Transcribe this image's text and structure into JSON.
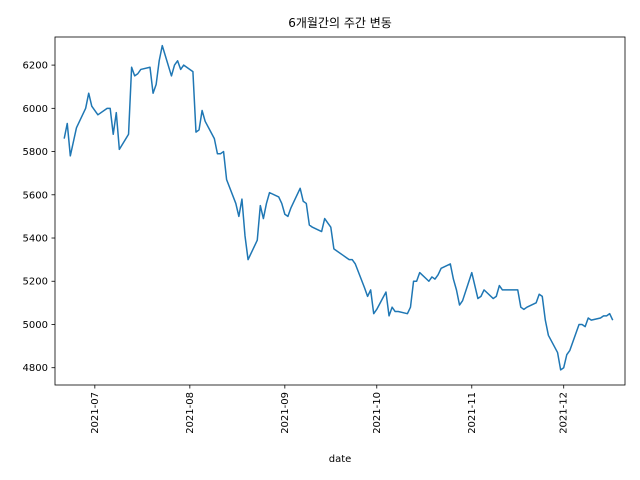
{
  "chart_data": {
    "type": "line",
    "title": "6개월간의 주간 변동",
    "xlabel": "date",
    "ylabel": "",
    "grid": false,
    "legend": "none",
    "line_color": "#1f77b4",
    "xlim": [
      "2021-06-18",
      "2021-12-21"
    ],
    "ylim": [
      4720,
      6330
    ],
    "x_ticks": [
      "2021-07",
      "2021-08",
      "2021-09",
      "2021-10",
      "2021-11",
      "2021-12"
    ],
    "x_tick_dates": [
      "2021-07-01",
      "2021-08-01",
      "2021-09-01",
      "2021-10-01",
      "2021-11-01",
      "2021-12-01"
    ],
    "y_ticks": [
      4800,
      5000,
      5200,
      5400,
      5600,
      5800,
      6000,
      6200
    ],
    "series": [
      {
        "x": [
          "2021-06-21",
          "2021-06-22",
          "2021-06-23",
          "2021-06-25",
          "2021-06-28",
          "2021-06-29",
          "2021-06-30",
          "2021-07-02",
          "2021-07-05",
          "2021-07-06",
          "2021-07-07",
          "2021-07-08",
          "2021-07-09",
          "2021-07-12",
          "2021-07-13",
          "2021-07-14",
          "2021-07-15",
          "2021-07-16",
          "2021-07-19",
          "2021-07-20",
          "2021-07-21",
          "2021-07-22",
          "2021-07-23",
          "2021-07-26",
          "2021-07-27",
          "2021-07-28",
          "2021-07-29",
          "2021-07-30",
          "2021-08-02",
          "2021-08-03",
          "2021-08-04",
          "2021-08-05",
          "2021-08-06",
          "2021-08-09",
          "2021-08-10",
          "2021-08-11",
          "2021-08-12",
          "2021-08-13",
          "2021-08-16",
          "2021-08-17",
          "2021-08-18",
          "2021-08-19",
          "2021-08-20",
          "2021-08-23",
          "2021-08-24",
          "2021-08-25",
          "2021-08-26",
          "2021-08-27",
          "2021-08-30",
          "2021-08-31",
          "2021-09-01",
          "2021-09-02",
          "2021-09-03",
          "2021-09-06",
          "2021-09-07",
          "2021-09-08",
          "2021-09-09",
          "2021-09-10",
          "2021-09-13",
          "2021-09-14",
          "2021-09-15",
          "2021-09-16",
          "2021-09-17",
          "2021-09-20",
          "2021-09-21",
          "2021-09-22",
          "2021-09-23",
          "2021-09-24",
          "2021-09-27",
          "2021-09-28",
          "2021-09-29",
          "2021-09-30",
          "2021-10-01",
          "2021-10-04",
          "2021-10-05",
          "2021-10-06",
          "2021-10-07",
          "2021-10-08",
          "2021-10-11",
          "2021-10-12",
          "2021-10-13",
          "2021-10-14",
          "2021-10-15",
          "2021-10-18",
          "2021-10-19",
          "2021-10-20",
          "2021-10-21",
          "2021-10-22",
          "2021-10-25",
          "2021-10-26",
          "2021-10-27",
          "2021-10-28",
          "2021-10-29",
          "2021-11-01",
          "2021-11-02",
          "2021-11-03",
          "2021-11-04",
          "2021-11-05",
          "2021-11-08",
          "2021-11-09",
          "2021-11-10",
          "2021-11-11",
          "2021-11-12",
          "2021-11-15",
          "2021-11-16",
          "2021-11-17",
          "2021-11-18",
          "2021-11-19",
          "2021-11-22",
          "2021-11-23",
          "2021-11-24",
          "2021-11-25",
          "2021-11-26",
          "2021-11-29",
          "2021-11-30",
          "2021-12-01",
          "2021-12-02",
          "2021-12-03",
          "2021-12-06",
          "2021-12-07",
          "2021-12-08",
          "2021-12-09",
          "2021-12-10",
          "2021-12-13",
          "2021-12-14",
          "2021-12-15",
          "2021-12-16",
          "2021-12-17"
        ],
        "y": [
          5860,
          5930,
          5780,
          5910,
          6000,
          6070,
          6010,
          5970,
          6000,
          6000,
          5880,
          5980,
          5810,
          5880,
          6190,
          6150,
          6160,
          6180,
          6190,
          6070,
          6110,
          6220,
          6290,
          6150,
          6200,
          6220,
          6180,
          6200,
          6170,
          5890,
          5900,
          5990,
          5940,
          5860,
          5790,
          5790,
          5800,
          5670,
          5560,
          5500,
          5580,
          5410,
          5300,
          5390,
          5550,
          5490,
          5560,
          5610,
          5590,
          5560,
          5510,
          5500,
          5540,
          5630,
          5570,
          5560,
          5460,
          5450,
          5430,
          5490,
          5470,
          5450,
          5350,
          5320,
          5310,
          5300,
          5300,
          5280,
          5170,
          5130,
          5160,
          5050,
          5070,
          5150,
          5040,
          5080,
          5060,
          5060,
          5050,
          5080,
          5200,
          5200,
          5240,
          5200,
          5220,
          5210,
          5230,
          5260,
          5280,
          5210,
          5160,
          5090,
          5110,
          5240,
          5180,
          5120,
          5130,
          5160,
          5120,
          5130,
          5180,
          5160,
          5160,
          5160,
          5160,
          5080,
          5070,
          5080,
          5100,
          5140,
          5130,
          5020,
          4950,
          4870,
          4790,
          4800,
          4860,
          4880,
          5000,
          5000,
          4990,
          5030,
          5020,
          5030,
          5040,
          5040,
          5050,
          5020
        ]
      }
    ]
  }
}
